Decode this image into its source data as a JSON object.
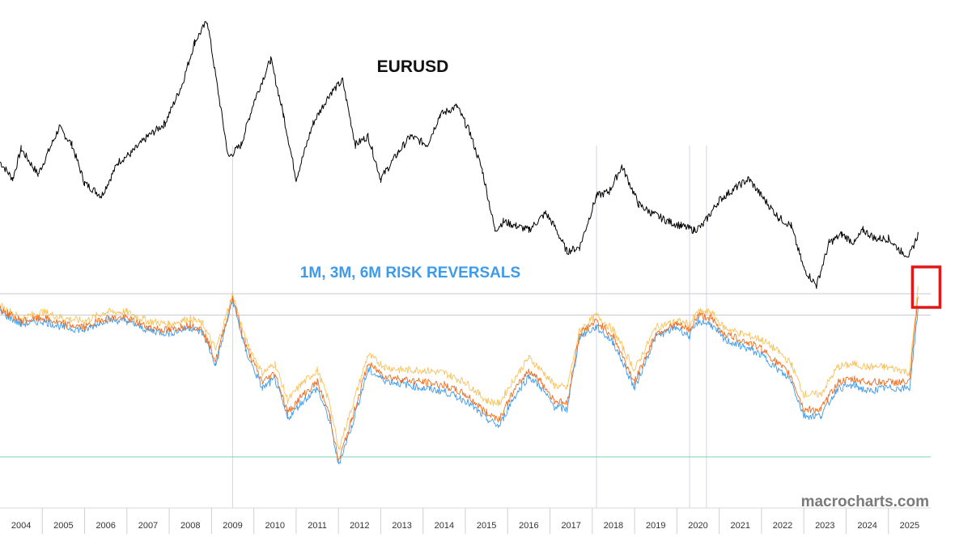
{
  "chart_data": {
    "type": "line",
    "title": "EURUSD",
    "subtitle": "1M, 3M, 6M RISK REVERSALS",
    "watermark": "macrocharts.com",
    "xlabel": "",
    "ylabel": "",
    "x_ticks": [
      "2004",
      "2005",
      "2006",
      "2007",
      "2008",
      "2009",
      "2010",
      "2011",
      "2012",
      "2013",
      "2014",
      "2015",
      "2016",
      "2017",
      "2018",
      "2019",
      "2020",
      "2021",
      "2022",
      "2023",
      "2024",
      "2025"
    ],
    "x_range": [
      2003.5,
      2025.5
    ],
    "grid": "vertical year dividers",
    "highlight": {
      "label": "",
      "x_range": [
        2024.8,
        2025.5
      ],
      "color": "#e01818"
    },
    "reference_lines": [
      {
        "panel": "lower",
        "value": 0.92,
        "color": "#c8c8d8"
      },
      {
        "panel": "lower",
        "value": 0.78,
        "color": "#c8c8d8"
      },
      {
        "panel": "lower",
        "value": -0.15,
        "color": "#7fd3b4"
      }
    ],
    "event_lines_x": [
      2009.0,
      2017.6,
      2019.8,
      2020.2
    ],
    "panels": [
      {
        "name": "upper",
        "series": [
          {
            "name": "",
            "color": "#000000",
            "x": [
              2003.5,
              2003.8,
              2004.0,
              2004.4,
              2004.9,
              2005.2,
              2005.5,
              2005.9,
              2006.3,
              2006.6,
              2007.0,
              2007.4,
              2007.8,
              2008.1,
              2008.4,
              2008.6,
              2008.9,
              2009.2,
              2009.5,
              2009.9,
              2010.2,
              2010.5,
              2010.9,
              2011.3,
              2011.6,
              2011.9,
              2012.2,
              2012.5,
              2012.9,
              2013.2,
              2013.6,
              2013.9,
              2014.3,
              2014.6,
              2014.9,
              2015.2,
              2015.4,
              2015.7,
              2016.0,
              2016.4,
              2016.6,
              2016.9,
              2017.2,
              2017.6,
              2017.9,
              2018.2,
              2018.6,
              2018.9,
              2019.3,
              2019.6,
              2019.9,
              2020.1,
              2020.5,
              2020.9,
              2021.2,
              2021.5,
              2021.9,
              2022.2,
              2022.5,
              2022.8,
              2023.1,
              2023.4,
              2023.7,
              2023.9,
              2024.2,
              2024.5,
              2024.8,
              2025.0,
              2025.2
            ],
            "values": [
              1.26,
              1.22,
              1.29,
              1.23,
              1.34,
              1.3,
              1.21,
              1.18,
              1.26,
              1.28,
              1.32,
              1.35,
              1.44,
              1.54,
              1.59,
              1.46,
              1.27,
              1.3,
              1.4,
              1.5,
              1.37,
              1.22,
              1.35,
              1.42,
              1.45,
              1.3,
              1.32,
              1.22,
              1.28,
              1.32,
              1.3,
              1.37,
              1.39,
              1.33,
              1.24,
              1.1,
              1.12,
              1.11,
              1.1,
              1.14,
              1.11,
              1.05,
              1.06,
              1.18,
              1.19,
              1.25,
              1.16,
              1.14,
              1.12,
              1.11,
              1.1,
              1.11,
              1.17,
              1.2,
              1.22,
              1.18,
              1.13,
              1.11,
              1.01,
              0.97,
              1.07,
              1.09,
              1.07,
              1.1,
              1.08,
              1.08,
              1.05,
              1.04,
              1.09
            ]
          }
        ]
      },
      {
        "name": "lower",
        "series": [
          {
            "name": "",
            "color": "#3d9bea",
            "x": [
              2003.5,
              2004.0,
              2004.5,
              2005.0,
              2005.5,
              2006.0,
              2006.5,
              2007.0,
              2007.5,
              2008.0,
              2008.3,
              2008.6,
              2009.0,
              2009.3,
              2009.7,
              2010.0,
              2010.3,
              2010.6,
              2011.0,
              2011.3,
              2011.5,
              2011.8,
              2012.2,
              2012.6,
              2013.0,
              2013.5,
              2014.0,
              2014.5,
              2015.0,
              2015.3,
              2015.6,
              2016.0,
              2016.3,
              2016.6,
              2016.9,
              2017.2,
              2017.6,
              2018.0,
              2018.5,
              2019.0,
              2019.5,
              2019.8,
              2020.0,
              2020.3,
              2020.6,
              2021.0,
              2021.5,
              2021.9,
              2022.2,
              2022.5,
              2022.9,
              2023.3,
              2023.7,
              2024.0,
              2024.4,
              2024.8,
              2025.0,
              2025.2
            ],
            "values": [
              0.8,
              0.72,
              0.74,
              0.7,
              0.68,
              0.75,
              0.74,
              0.68,
              0.66,
              0.7,
              0.66,
              0.45,
              0.88,
              0.55,
              0.3,
              0.36,
              0.1,
              0.2,
              0.3,
              0.08,
              -0.2,
              0.04,
              0.42,
              0.35,
              0.33,
              0.3,
              0.28,
              0.22,
              0.1,
              0.05,
              0.22,
              0.38,
              0.3,
              0.18,
              0.16,
              0.64,
              0.7,
              0.6,
              0.3,
              0.64,
              0.7,
              0.64,
              0.74,
              0.72,
              0.62,
              0.58,
              0.52,
              0.42,
              0.35,
              0.12,
              0.12,
              0.3,
              0.32,
              0.28,
              0.3,
              0.3,
              0.3,
              0.82
            ]
          },
          {
            "name": "",
            "color": "#f06b1c",
            "x": [
              2003.5,
              2004.0,
              2004.5,
              2005.0,
              2005.5,
              2006.0,
              2006.5,
              2007.0,
              2007.5,
              2008.0,
              2008.3,
              2008.6,
              2009.0,
              2009.3,
              2009.7,
              2010.0,
              2010.3,
              2010.6,
              2011.0,
              2011.3,
              2011.5,
              2011.8,
              2012.2,
              2012.6,
              2013.0,
              2013.5,
              2014.0,
              2014.5,
              2015.0,
              2015.3,
              2015.6,
              2016.0,
              2016.3,
              2016.6,
              2016.9,
              2017.2,
              2017.6,
              2018.0,
              2018.5,
              2019.0,
              2019.5,
              2019.8,
              2020.0,
              2020.3,
              2020.6,
              2021.0,
              2021.5,
              2021.9,
              2022.2,
              2022.5,
              2022.9,
              2023.3,
              2023.7,
              2024.0,
              2024.4,
              2024.8,
              2025.0,
              2025.2
            ],
            "values": [
              0.82,
              0.74,
              0.76,
              0.72,
              0.7,
              0.76,
              0.76,
              0.7,
              0.68,
              0.72,
              0.68,
              0.48,
              0.9,
              0.58,
              0.34,
              0.4,
              0.14,
              0.24,
              0.34,
              0.12,
              -0.18,
              0.08,
              0.46,
              0.38,
              0.36,
              0.34,
              0.32,
              0.26,
              0.14,
              0.1,
              0.26,
              0.42,
              0.34,
              0.22,
              0.2,
              0.66,
              0.74,
              0.64,
              0.34,
              0.66,
              0.72,
              0.68,
              0.78,
              0.76,
              0.66,
              0.62,
              0.56,
              0.46,
              0.38,
              0.16,
              0.16,
              0.34,
              0.36,
              0.34,
              0.34,
              0.34,
              0.34,
              0.9
            ]
          },
          {
            "name": "",
            "color": "#f8c25a",
            "x": [
              2003.5,
              2004.0,
              2004.5,
              2005.0,
              2005.5,
              2006.0,
              2006.5,
              2007.0,
              2007.5,
              2008.0,
              2008.3,
              2008.6,
              2009.0,
              2009.3,
              2009.7,
              2010.0,
              2010.3,
              2010.6,
              2011.0,
              2011.3,
              2011.5,
              2011.8,
              2012.2,
              2012.6,
              2013.0,
              2013.5,
              2014.0,
              2014.5,
              2015.0,
              2015.3,
              2015.6,
              2016.0,
              2016.3,
              2016.6,
              2016.9,
              2017.2,
              2017.6,
              2018.0,
              2018.5,
              2019.0,
              2019.5,
              2019.8,
              2020.0,
              2020.3,
              2020.6,
              2021.0,
              2021.5,
              2021.9,
              2022.2,
              2022.5,
              2022.9,
              2023.3,
              2023.7,
              2024.0,
              2024.4,
              2024.8,
              2025.0,
              2025.2
            ],
            "values": [
              0.84,
              0.76,
              0.8,
              0.76,
              0.74,
              0.8,
              0.8,
              0.74,
              0.72,
              0.76,
              0.72,
              0.55,
              0.92,
              0.62,
              0.4,
              0.46,
              0.22,
              0.32,
              0.42,
              0.2,
              -0.1,
              0.16,
              0.52,
              0.44,
              0.42,
              0.42,
              0.4,
              0.34,
              0.22,
              0.2,
              0.34,
              0.5,
              0.42,
              0.32,
              0.3,
              0.68,
              0.78,
              0.68,
              0.42,
              0.7,
              0.74,
              0.72,
              0.8,
              0.8,
              0.7,
              0.66,
              0.62,
              0.54,
              0.46,
              0.26,
              0.26,
              0.44,
              0.46,
              0.44,
              0.44,
              0.42,
              0.4,
              0.96
            ]
          }
        ]
      }
    ]
  }
}
